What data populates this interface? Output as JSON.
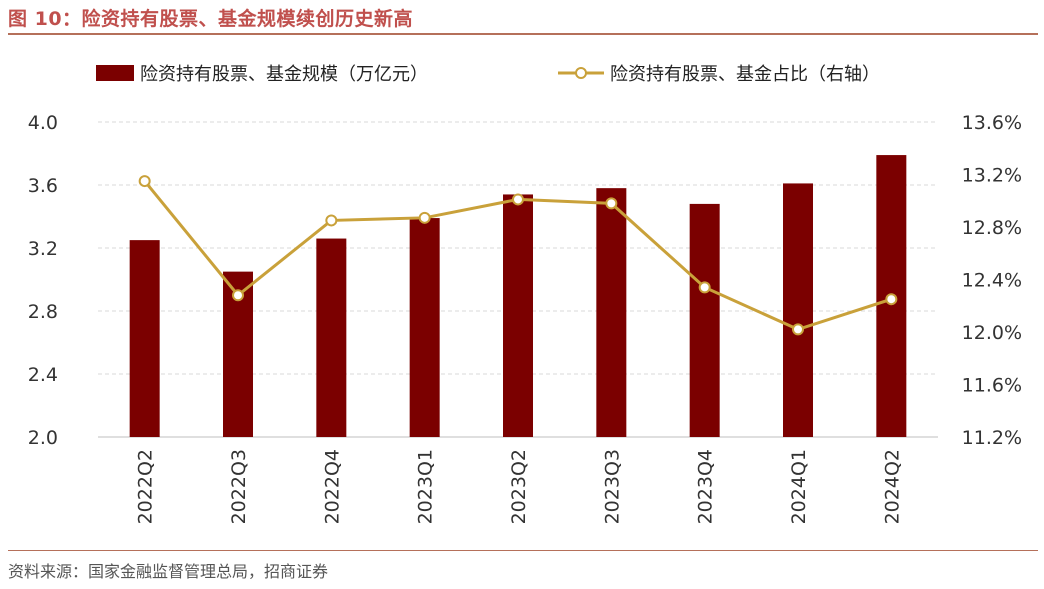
{
  "header": {
    "title": "图 10：险资持有股票、基金规模续创历史新高"
  },
  "footer": {
    "source": "资料来源：国家金融监督管理总局，招商证券"
  },
  "chart_data": {
    "type": "bar+line",
    "categories": [
      "2022Q2",
      "2022Q3",
      "2022Q4",
      "2023Q1",
      "2023Q2",
      "2023Q3",
      "2023Q4",
      "2024Q1",
      "2024Q2"
    ],
    "series": [
      {
        "name": "险资持有股票、基金规模（万亿元）",
        "type": "bar",
        "axis": "left",
        "color": "#7b0000",
        "values": [
          3.25,
          3.05,
          3.26,
          3.39,
          3.54,
          3.58,
          3.48,
          3.61,
          3.79
        ]
      },
      {
        "name": "险资持有股票、基金占比（右轴）",
        "type": "line",
        "axis": "right",
        "color": "#c9a13a",
        "values": [
          13.15,
          12.28,
          12.85,
          12.87,
          13.01,
          12.98,
          12.34,
          12.02,
          12.25
        ]
      }
    ],
    "yleft": {
      "lim": [
        2.0,
        4.0
      ],
      "ticks": [
        "2.0",
        "2.4",
        "2.8",
        "3.2",
        "3.6",
        "4.0"
      ]
    },
    "yright": {
      "lim": [
        11.2,
        13.6
      ],
      "ticks": [
        "11.2%",
        "11.6%",
        "12.0%",
        "12.4%",
        "12.8%",
        "13.2%",
        "13.6%"
      ]
    },
    "grid": true,
    "legend_position": "top"
  }
}
